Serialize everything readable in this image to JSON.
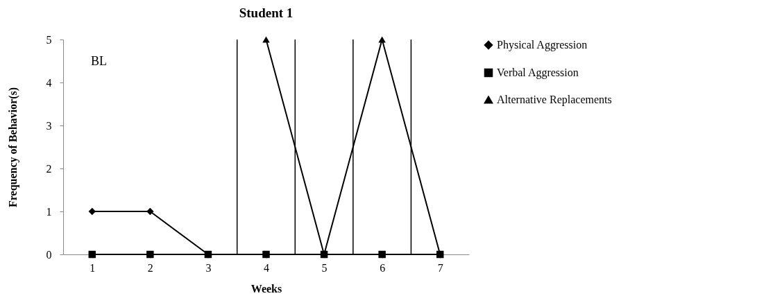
{
  "chart_data": {
    "type": "line",
    "title": "Student 1",
    "xlabel": "Weeks",
    "ylabel": "Frequency of Behavior(s)",
    "x": [
      1,
      2,
      3,
      4,
      5,
      6,
      7
    ],
    "xlim": [
      0.5,
      7.5
    ],
    "xticks": [
      1,
      2,
      3,
      4,
      5,
      6,
      7
    ],
    "ylim": [
      0,
      5
    ],
    "yticks": [
      0,
      1,
      2,
      3,
      4,
      5
    ],
    "series": [
      {
        "name": "Physical Aggression",
        "color": "#000000",
        "marker": "diamond",
        "values": [
          1,
          1,
          0,
          0,
          0,
          0,
          0
        ]
      },
      {
        "name": "Verbal Aggression",
        "color": "#000000",
        "marker": "square",
        "values": [
          0,
          0,
          0,
          0,
          0,
          0,
          0
        ]
      },
      {
        "name": "Alternative Replacements",
        "color": "#000000",
        "marker": "triangle",
        "values": [
          null,
          null,
          null,
          5,
          0,
          5,
          0
        ]
      }
    ],
    "ref_lines": [
      {
        "axis": "x",
        "value": 3.5,
        "color": "#000000"
      },
      {
        "axis": "x",
        "value": 4.5,
        "color": "#000000"
      },
      {
        "axis": "x",
        "value": 5.5,
        "color": "#000000"
      },
      {
        "axis": "x",
        "value": 6.5,
        "color": "#000000"
      }
    ],
    "annotations": [
      "BL"
    ],
    "grid": false,
    "legend": "right"
  }
}
